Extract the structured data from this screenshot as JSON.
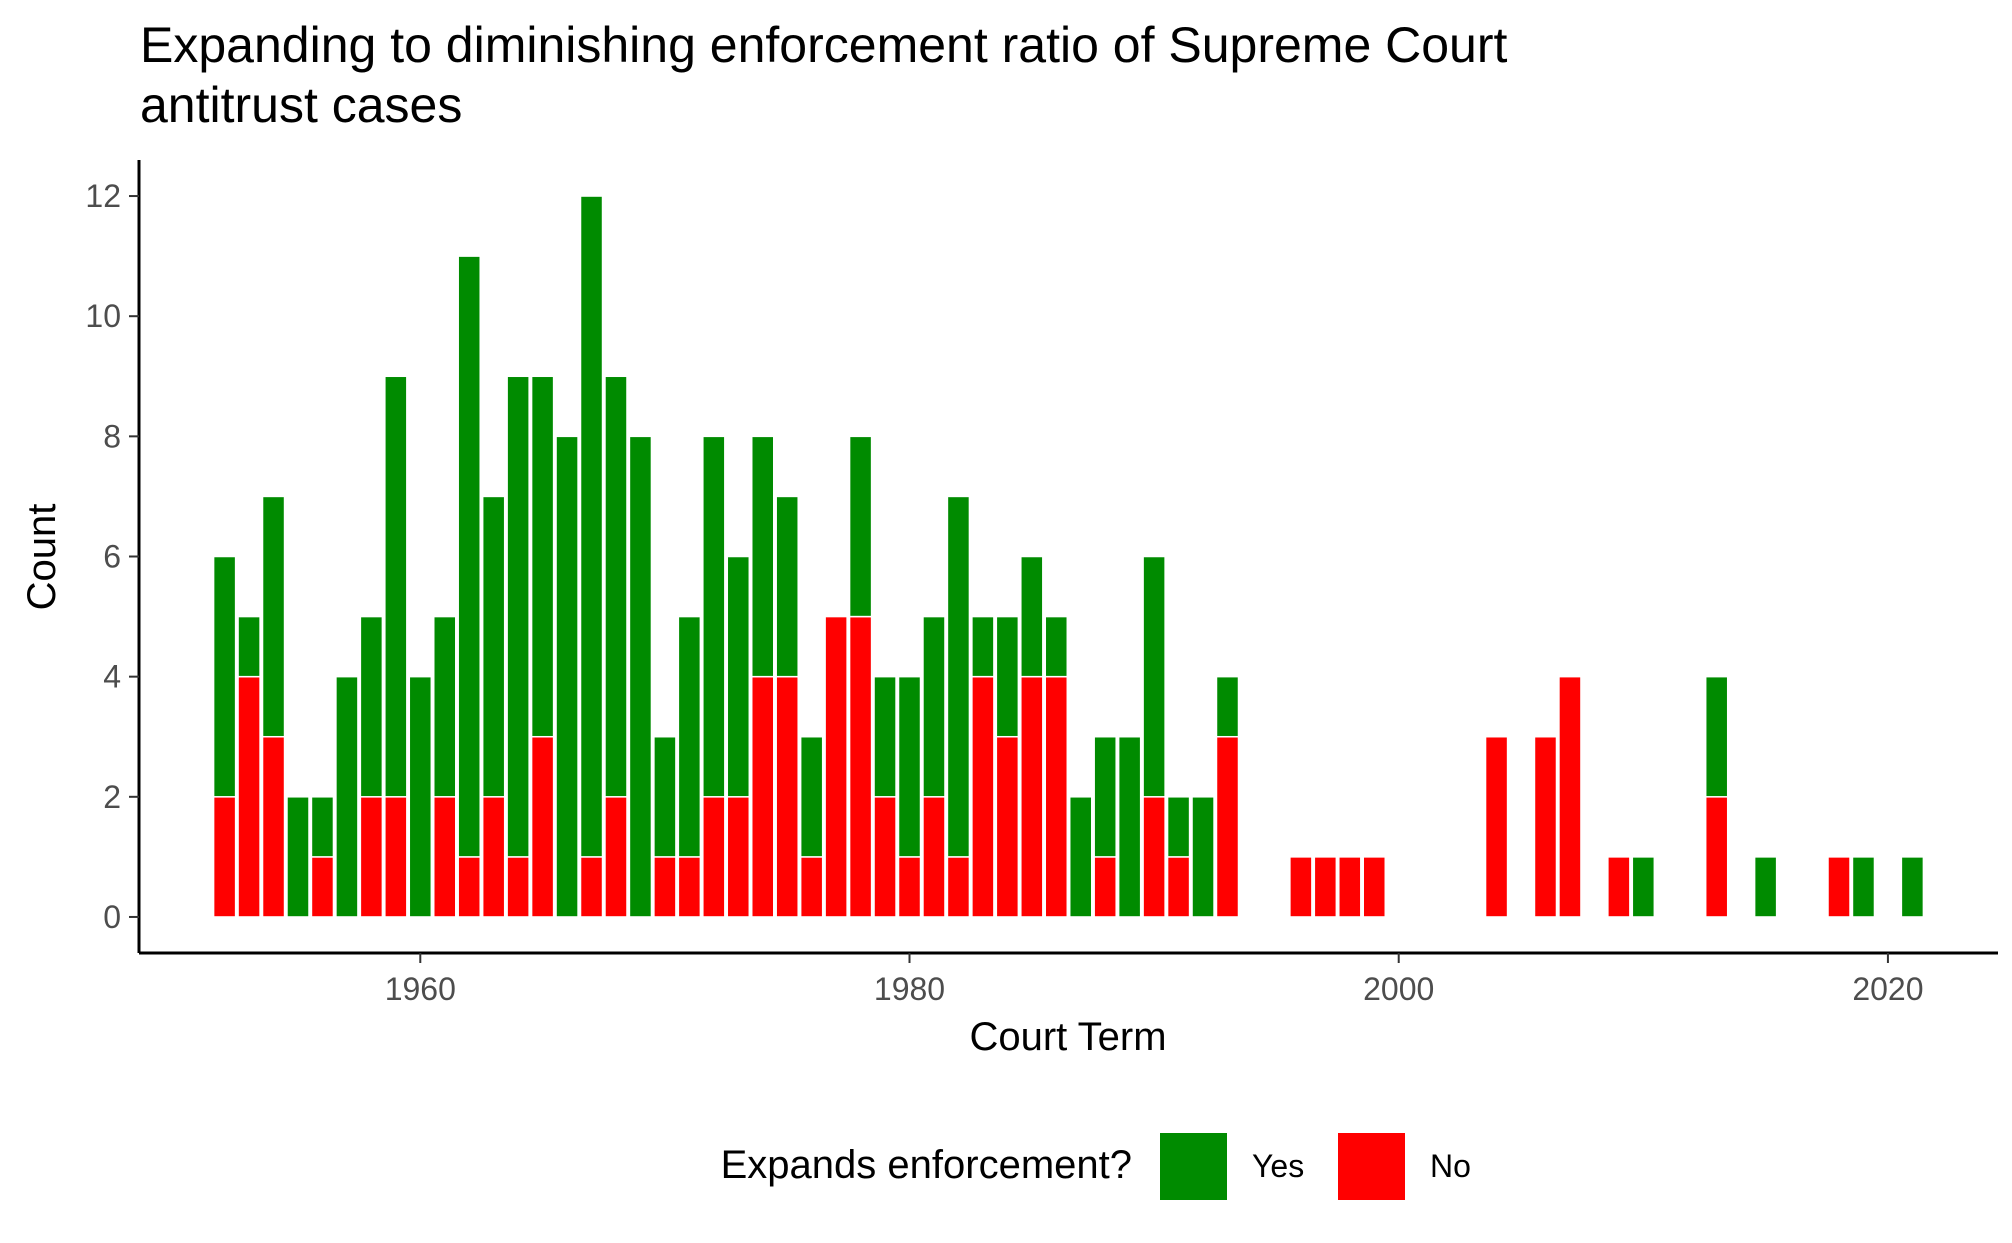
{
  "chart_data": {
    "type": "bar",
    "stacked": true,
    "title_lines": [
      "Expanding to diminishing enforcement ratio of Supreme Court",
      "antitrust cases"
    ],
    "xlabel": "Court Term",
    "ylabel": "Count",
    "xlim": [
      1948.5,
      2024.5
    ],
    "ylim": [
      -0.6,
      12.6
    ],
    "x_ticks": [
      1960,
      1980,
      2000,
      2020
    ],
    "y_ticks": [
      0,
      2,
      4,
      6,
      8,
      10,
      12
    ],
    "grid": false,
    "legend": {
      "title": "Expands enforcement?",
      "position": "bottom",
      "entries": [
        {
          "label": "Yes",
          "color": "#008B00"
        },
        {
          "label": "No",
          "color": "#FF0000"
        }
      ]
    },
    "x": [
      1952,
      1953,
      1954,
      1955,
      1956,
      1957,
      1958,
      1959,
      1960,
      1961,
      1962,
      1963,
      1964,
      1965,
      1966,
      1967,
      1968,
      1969,
      1970,
      1971,
      1972,
      1973,
      1974,
      1975,
      1976,
      1977,
      1978,
      1979,
      1980,
      1981,
      1982,
      1983,
      1984,
      1985,
      1986,
      1987,
      1988,
      1989,
      1990,
      1991,
      1992,
      1993,
      1996,
      1997,
      1998,
      1999,
      2004,
      2006,
      2007,
      2009,
      2010,
      2013,
      2015,
      2018,
      2019,
      2021
    ],
    "series": [
      {
        "name": "No",
        "color": "#FF0000",
        "values": [
          2,
          4,
          3,
          0,
          1,
          0,
          2,
          2,
          0,
          2,
          1,
          2,
          1,
          3,
          0,
          1,
          2,
          0,
          1,
          1,
          2,
          2,
          4,
          4,
          1,
          5,
          5,
          2,
          1,
          2,
          1,
          4,
          3,
          4,
          4,
          0,
          1,
          0,
          2,
          1,
          0,
          3,
          1,
          1,
          1,
          1,
          3,
          3,
          4,
          1,
          0,
          2,
          0,
          1,
          0,
          0
        ]
      },
      {
        "name": "Yes",
        "color": "#008B00",
        "values": [
          4,
          1,
          4,
          2,
          1,
          4,
          3,
          7,
          4,
          3,
          10,
          5,
          8,
          6,
          8,
          11,
          7,
          8,
          2,
          4,
          6,
          4,
          4,
          3,
          2,
          0,
          3,
          2,
          3,
          3,
          6,
          1,
          2,
          2,
          1,
          2,
          2,
          3,
          4,
          1,
          2,
          1,
          0,
          0,
          0,
          0,
          0,
          0,
          0,
          0,
          1,
          2,
          1,
          0,
          1,
          1
        ]
      }
    ]
  }
}
